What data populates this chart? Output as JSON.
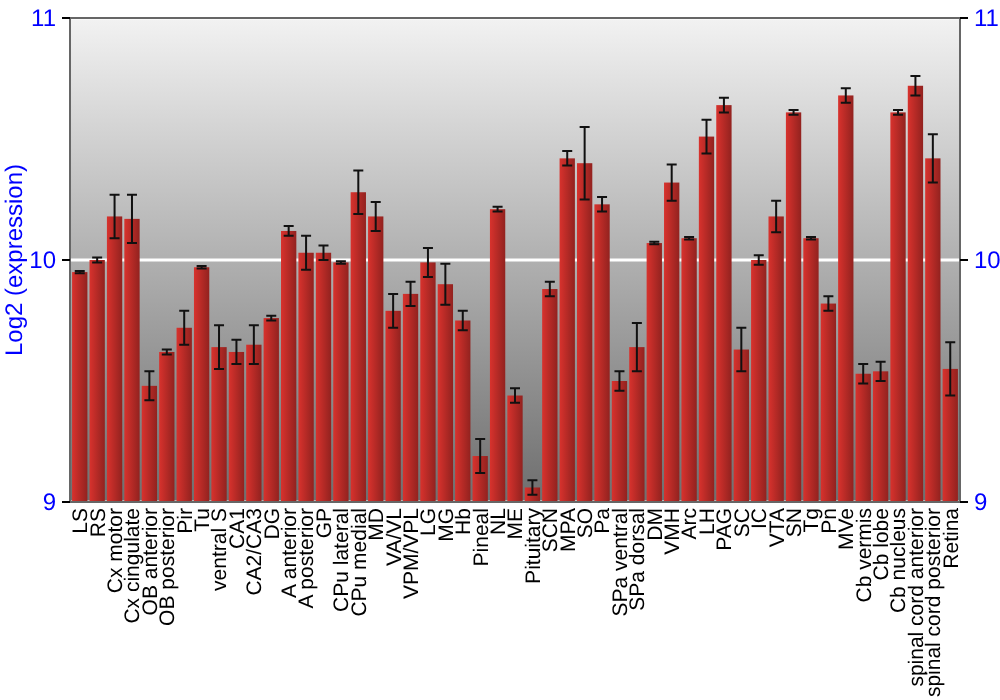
{
  "chart_data": {
    "type": "bar",
    "ylabel": "Log2 (expression)",
    "categories": [
      "LS",
      "RS",
      "Cx motor",
      "Cx cingulate",
      "OB anterior",
      "OB posterior",
      "Pir",
      "Tu",
      "ventral S",
      "CA1",
      "CA2/CA3",
      "DG",
      "A anterior",
      "A posterior",
      "GP",
      "CPu lateral",
      "CPu medial",
      "MD",
      "VA/VL",
      "VPM/VPL",
      "LG",
      "MG",
      "Hb",
      "Pineal",
      "NL",
      "ME",
      "Pituitary",
      "SCN",
      "MPA",
      "SO",
      "Pa",
      "SPa ventral",
      "SPa dorsal",
      "DM",
      "VMH",
      "Arc",
      "LH",
      "PAG",
      "SC",
      "IC",
      "VTA",
      "SN",
      "Tg",
      "Pn",
      "MVe",
      "Cb vermis",
      "Cb lobe",
      "Cb nucleus",
      "spinal cord anterior",
      "spinal cord posterior",
      "Retina"
    ],
    "series": [
      {
        "color": "#b52a26",
        "values": [
          9.95,
          10.0,
          10.18,
          10.17,
          9.48,
          9.62,
          9.72,
          9.97,
          9.64,
          9.62,
          9.65,
          9.76,
          10.12,
          10.03,
          10.03,
          9.99,
          10.28,
          10.18,
          9.79,
          9.86,
          9.99,
          9.9,
          9.75,
          9.19,
          10.21,
          9.44,
          9.06,
          9.88,
          10.42,
          10.4,
          10.23,
          9.5,
          9.64,
          10.07,
          10.32,
          10.09,
          10.51,
          10.64,
          9.63,
          10.0,
          10.18,
          10.61,
          10.09,
          9.82,
          10.68,
          9.53,
          9.54,
          10.61,
          10.72,
          10.42,
          9.55
        ],
        "errors": [
          0.005,
          0.01,
          0.09,
          0.1,
          0.06,
          0.01,
          0.07,
          0.005,
          0.09,
          0.05,
          0.08,
          0.01,
          0.02,
          0.07,
          0.03,
          0.005,
          0.09,
          0.06,
          0.07,
          0.05,
          0.06,
          0.085,
          0.04,
          0.07,
          0.01,
          0.03,
          0.03,
          0.03,
          0.03,
          0.15,
          0.03,
          0.04,
          0.1,
          0.005,
          0.075,
          0.005,
          0.07,
          0.03,
          0.09,
          0.02,
          0.065,
          0.01,
          0.005,
          0.03,
          0.03,
          0.04,
          0.04,
          0.01,
          0.04,
          0.1,
          0.11
        ]
      }
    ],
    "ylim": [
      9,
      11
    ],
    "yticks": [
      9,
      10,
      11
    ],
    "y2lim": [
      9,
      11
    ],
    "y2ticks": [
      9,
      10,
      11
    ],
    "grid": "y"
  }
}
